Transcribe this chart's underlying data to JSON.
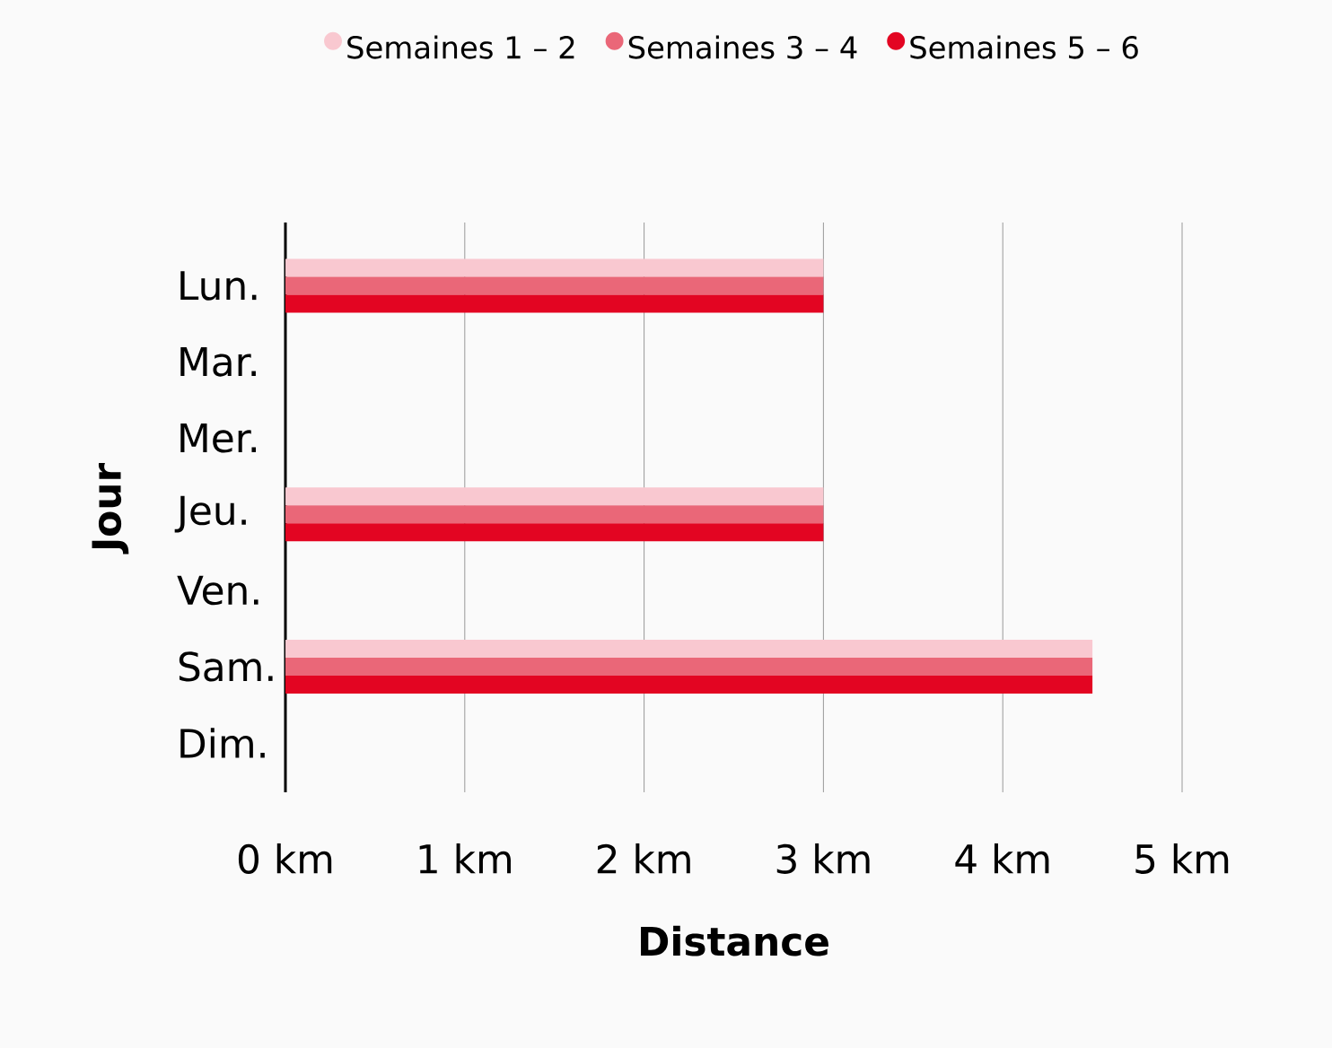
{
  "chart_data": {
    "type": "bar",
    "orientation": "horizontal",
    "categories": [
      "Lun.",
      "Mar.",
      "Mer.",
      "Jeu.",
      "Ven.",
      "Sam.",
      "Dim."
    ],
    "series": [
      {
        "name": "Semaines 1 – 2",
        "color": "#f9c8d0",
        "values": [
          3,
          0,
          0,
          3,
          0,
          4.5,
          0
        ]
      },
      {
        "name": "Semaines 3 – 4",
        "color": "#ea6778",
        "values": [
          3,
          0,
          0,
          3,
          0,
          4.5,
          0
        ]
      },
      {
        "name": "Semaines 5 – 6",
        "color": "#e30522",
        "values": [
          3,
          0,
          0,
          3,
          0,
          4.5,
          0
        ]
      }
    ],
    "xlim": [
      0,
      5
    ],
    "xticks": [
      {
        "value": 0,
        "label": "0 km"
      },
      {
        "value": 1,
        "label": "1 km"
      },
      {
        "value": 2,
        "label": "2 km"
      },
      {
        "value": 3,
        "label": "3 km"
      },
      {
        "value": 4,
        "label": "4 km"
      },
      {
        "value": 5,
        "label": "5 km"
      }
    ],
    "xlabel": "Distance",
    "ylabel": "Jour",
    "grid": "x",
    "legend": "top"
  }
}
